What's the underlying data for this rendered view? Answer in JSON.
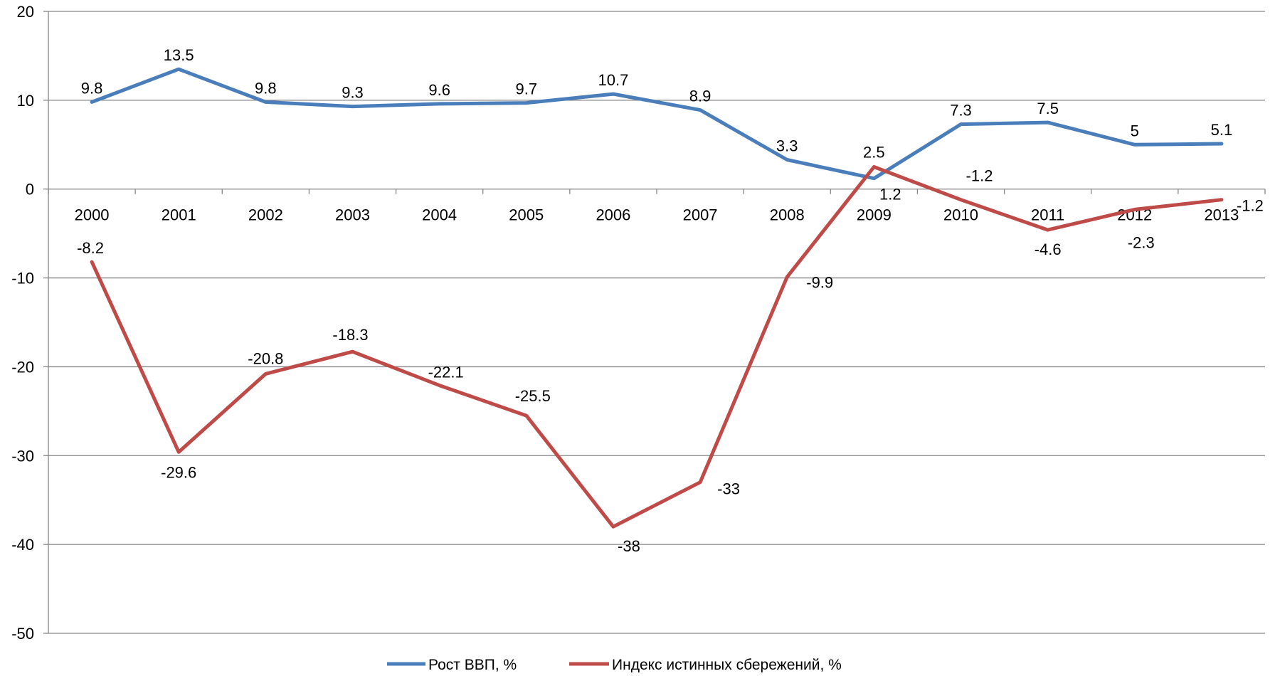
{
  "chart_data": {
    "type": "line",
    "title": "",
    "xlabel": "",
    "ylabel": "",
    "categories": [
      "2000",
      "2001",
      "2002",
      "2003",
      "2004",
      "2005",
      "2006",
      "2007",
      "2008",
      "2009",
      "2010",
      "2011",
      "2012",
      "2013"
    ],
    "ylim": [
      -50,
      20
    ],
    "y_ticks": [
      20,
      10,
      0,
      -10,
      -20,
      -30,
      -40,
      -50
    ],
    "grid": true,
    "legend_position": "bottom",
    "series": [
      {
        "name": "Рост ВВП, %",
        "color": "#4a7ebb",
        "values": [
          9.8,
          13.5,
          9.8,
          9.3,
          9.6,
          9.7,
          10.7,
          8.9,
          3.3,
          1.2,
          7.3,
          7.5,
          5,
          5.1
        ],
        "labels": [
          "9.8",
          "13.5",
          "9.8",
          "9.3",
          "9.6",
          "9.7",
          "10.7",
          "8.9",
          "3.3",
          "1.2",
          "7.3",
          "7.5",
          "5",
          "5.1"
        ]
      },
      {
        "name": "Индекс истинных сбережений, %",
        "color": "#be4b48",
        "values": [
          -8.2,
          -29.6,
          -20.8,
          -18.3,
          -22.1,
          -25.5,
          -38,
          -33,
          -9.9,
          2.5,
          -1.2,
          -4.6,
          -2.3,
          -1.2
        ],
        "labels": [
          "-8.2",
          "-29.6",
          "-20.8",
          "-18.3",
          "-22.1",
          "-25.5",
          "-38",
          "-33",
          "-9.9",
          "2.5",
          "-1.2",
          "-4.6",
          "-2.3",
          "-1.2"
        ]
      }
    ]
  }
}
